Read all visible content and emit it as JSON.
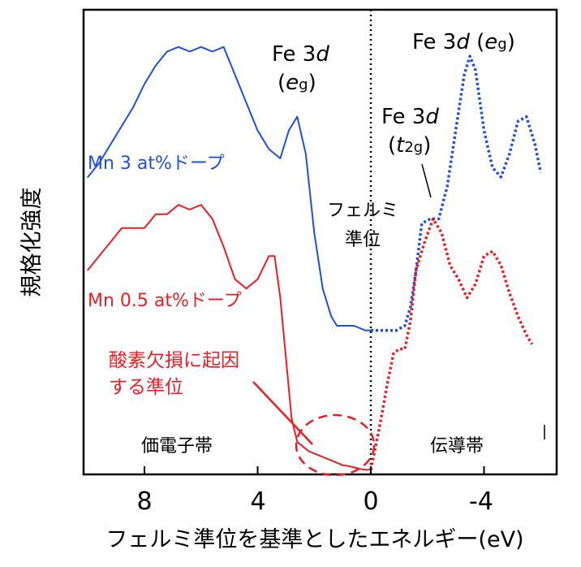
{
  "chart_data": {
    "type": "line",
    "xlabel": "フェルミ準位を基準としたエネルギー(eV)",
    "ylabel": "規格化強度",
    "x_reversed": true,
    "xlim": [
      10.2,
      -6.3
    ],
    "xticks": [
      8,
      4,
      0,
      -4
    ],
    "xtick_labels": [
      "8",
      "4",
      "0",
      "-4"
    ],
    "grid": false,
    "legend": "inline-labels",
    "colors": {
      "mn3": "#1f4fd6",
      "mn05": "#ec1c24",
      "axis": "#000000"
    },
    "series": [
      {
        "name": "Mn 3 at%ドープ",
        "color": "#1f4fd6",
        "style": "solid",
        "x": [
          10.0,
          9.6,
          9.2,
          8.8,
          8.4,
          8.0,
          7.6,
          7.2,
          6.8,
          6.4,
          6.0,
          5.6,
          5.2,
          4.8,
          4.4,
          4.0,
          3.6,
          3.2,
          2.9,
          2.6,
          2.3,
          2.0,
          1.7,
          1.4,
          1.2,
          1.0,
          0.6,
          0.2,
          0.0
        ],
        "y": [
          0.64,
          0.67,
          0.71,
          0.75,
          0.79,
          0.84,
          0.88,
          0.91,
          0.92,
          0.91,
          0.92,
          0.91,
          0.92,
          0.86,
          0.8,
          0.74,
          0.7,
          0.68,
          0.74,
          0.77,
          0.69,
          0.52,
          0.4,
          0.34,
          0.32,
          0.32,
          0.32,
          0.31,
          0.31
        ]
      },
      {
        "name": "",
        "color": "#1f4fd6",
        "style": "dotted",
        "x": [
          0.0,
          -0.3,
          -0.6,
          -0.9,
          -1.2,
          -1.4,
          -1.6,
          -1.8,
          -2.1,
          -2.4,
          -2.7,
          -3.0,
          -3.3,
          -3.5,
          -3.7,
          -4.0,
          -4.3,
          -4.6,
          -4.9,
          -5.2,
          -5.5,
          -5.8,
          -6.0
        ],
        "y": [
          0.31,
          0.31,
          0.31,
          0.31,
          0.32,
          0.36,
          0.44,
          0.54,
          0.55,
          0.55,
          0.62,
          0.74,
          0.86,
          0.9,
          0.87,
          0.74,
          0.66,
          0.64,
          0.69,
          0.76,
          0.77,
          0.71,
          0.65
        ]
      },
      {
        "name": "Mn 0.5 at%ドープ",
        "color": "#ec1c24",
        "style": "solid",
        "x": [
          10.0,
          9.6,
          9.2,
          8.8,
          8.4,
          8.0,
          7.6,
          7.2,
          6.8,
          6.4,
          6.0,
          5.6,
          5.2,
          4.8,
          4.4,
          4.0,
          3.6,
          3.4,
          3.2,
          3.0,
          2.8,
          2.6,
          2.4,
          2.2,
          2.0,
          1.8,
          1.6,
          1.4,
          1.2,
          1.0,
          0.8,
          0.6,
          0.4,
          0.2,
          0.0
        ],
        "y": [
          0.44,
          0.47,
          0.5,
          0.53,
          0.53,
          0.53,
          0.56,
          0.56,
          0.58,
          0.57,
          0.58,
          0.55,
          0.49,
          0.42,
          0.4,
          0.42,
          0.47,
          0.47,
          0.38,
          0.25,
          0.12,
          0.07,
          0.06,
          0.05,
          0.045,
          0.04,
          0.035,
          0.03,
          0.025,
          0.02,
          0.018,
          0.015,
          0.012,
          0.01,
          0.01
        ]
      },
      {
        "name": "",
        "color": "#ec1c24",
        "style": "dotted",
        "x": [
          0.0,
          -0.3,
          -0.6,
          -0.8,
          -1.0,
          -1.2,
          -1.4,
          -1.6,
          -1.9,
          -2.2,
          -2.5,
          -2.8,
          -3.1,
          -3.4,
          -3.7,
          -4.0,
          -4.3,
          -4.6,
          -4.9,
          -5.2,
          -5.5,
          -5.7
        ],
        "y": [
          0.01,
          0.1,
          0.2,
          0.26,
          0.27,
          0.27,
          0.33,
          0.44,
          0.5,
          0.55,
          0.52,
          0.45,
          0.42,
          0.38,
          0.41,
          0.47,
          0.48,
          0.45,
          0.39,
          0.34,
          0.3,
          0.28
        ]
      }
    ],
    "annotations": {
      "fe3d_eg_valence": "Fe 3",
      "fe3d_eg_valence_d": "d",
      "fe3d_eg_valence_sub_e": "e",
      "fe3d_eg_valence_sub_g": "g",
      "fe3d_eg_conduction": "Fe 3",
      "fe3d_eg_conduction_d": "d",
      "fe3d_eg_conduction_e": "e",
      "fe3d_eg_conduction_g": "g",
      "fe3d_t2g": "Fe 3",
      "fe3d_t2g_d": "d",
      "fe3d_t2g_t": "t",
      "fe3d_t2g_sub": "2g",
      "fermi_level_1": "フェルミ",
      "fermi_level_2": "準位",
      "oxygen_defect_1": "酸素欠損に起因",
      "oxygen_defect_2": "する準位",
      "valence_band": "価電子帯",
      "conduction_band": "伝導帯"
    }
  }
}
